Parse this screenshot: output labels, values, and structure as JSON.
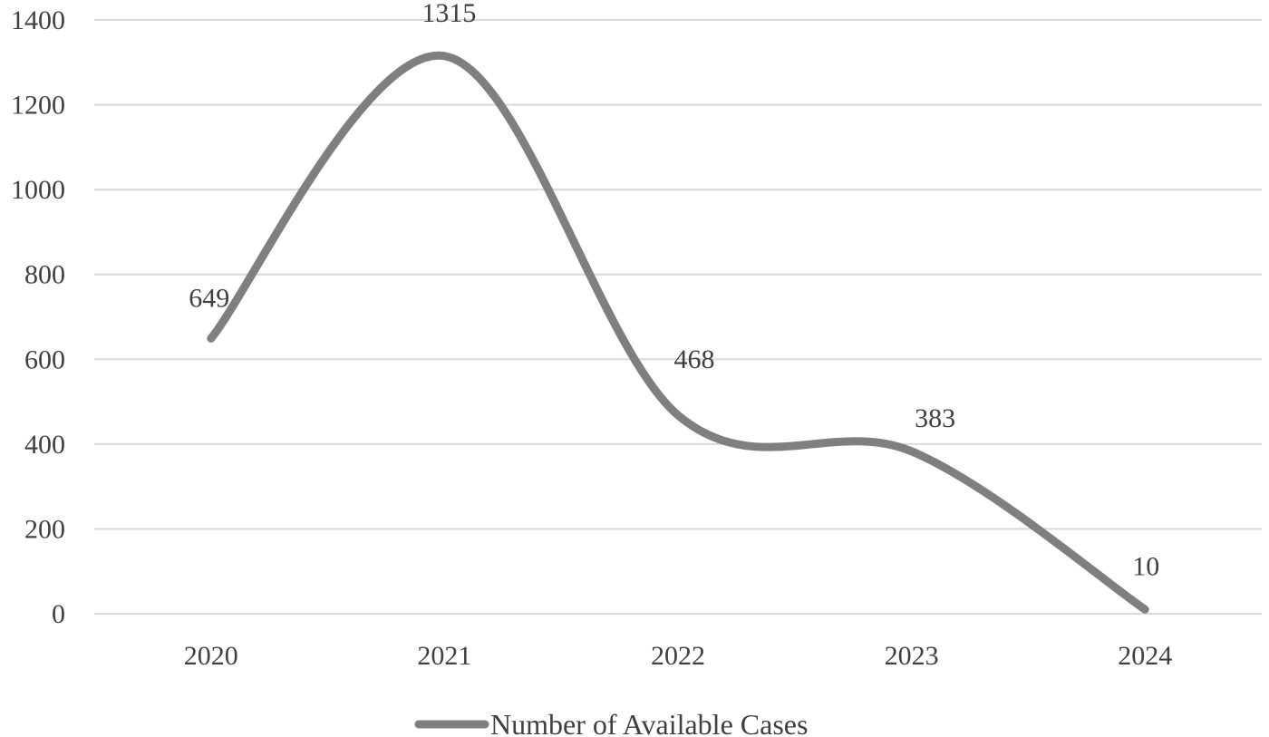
{
  "chart_data": {
    "type": "line",
    "smooth": true,
    "categories": [
      "2020",
      "2021",
      "2022",
      "2023",
      "2024"
    ],
    "series": [
      {
        "name": "Number of Available Cases",
        "values": [
          649,
          1315,
          468,
          383,
          10
        ]
      }
    ],
    "title": "",
    "xlabel": "",
    "ylabel": "",
    "ylim": [
      0,
      1400
    ],
    "yticks": [
      0,
      200,
      400,
      600,
      800,
      1000,
      1200,
      1400
    ],
    "grid": "horizontal",
    "legend": "bottom-center",
    "line_color": "#7f7f7f",
    "grid_color": "#d9d9d9",
    "text_color": "#404040"
  }
}
